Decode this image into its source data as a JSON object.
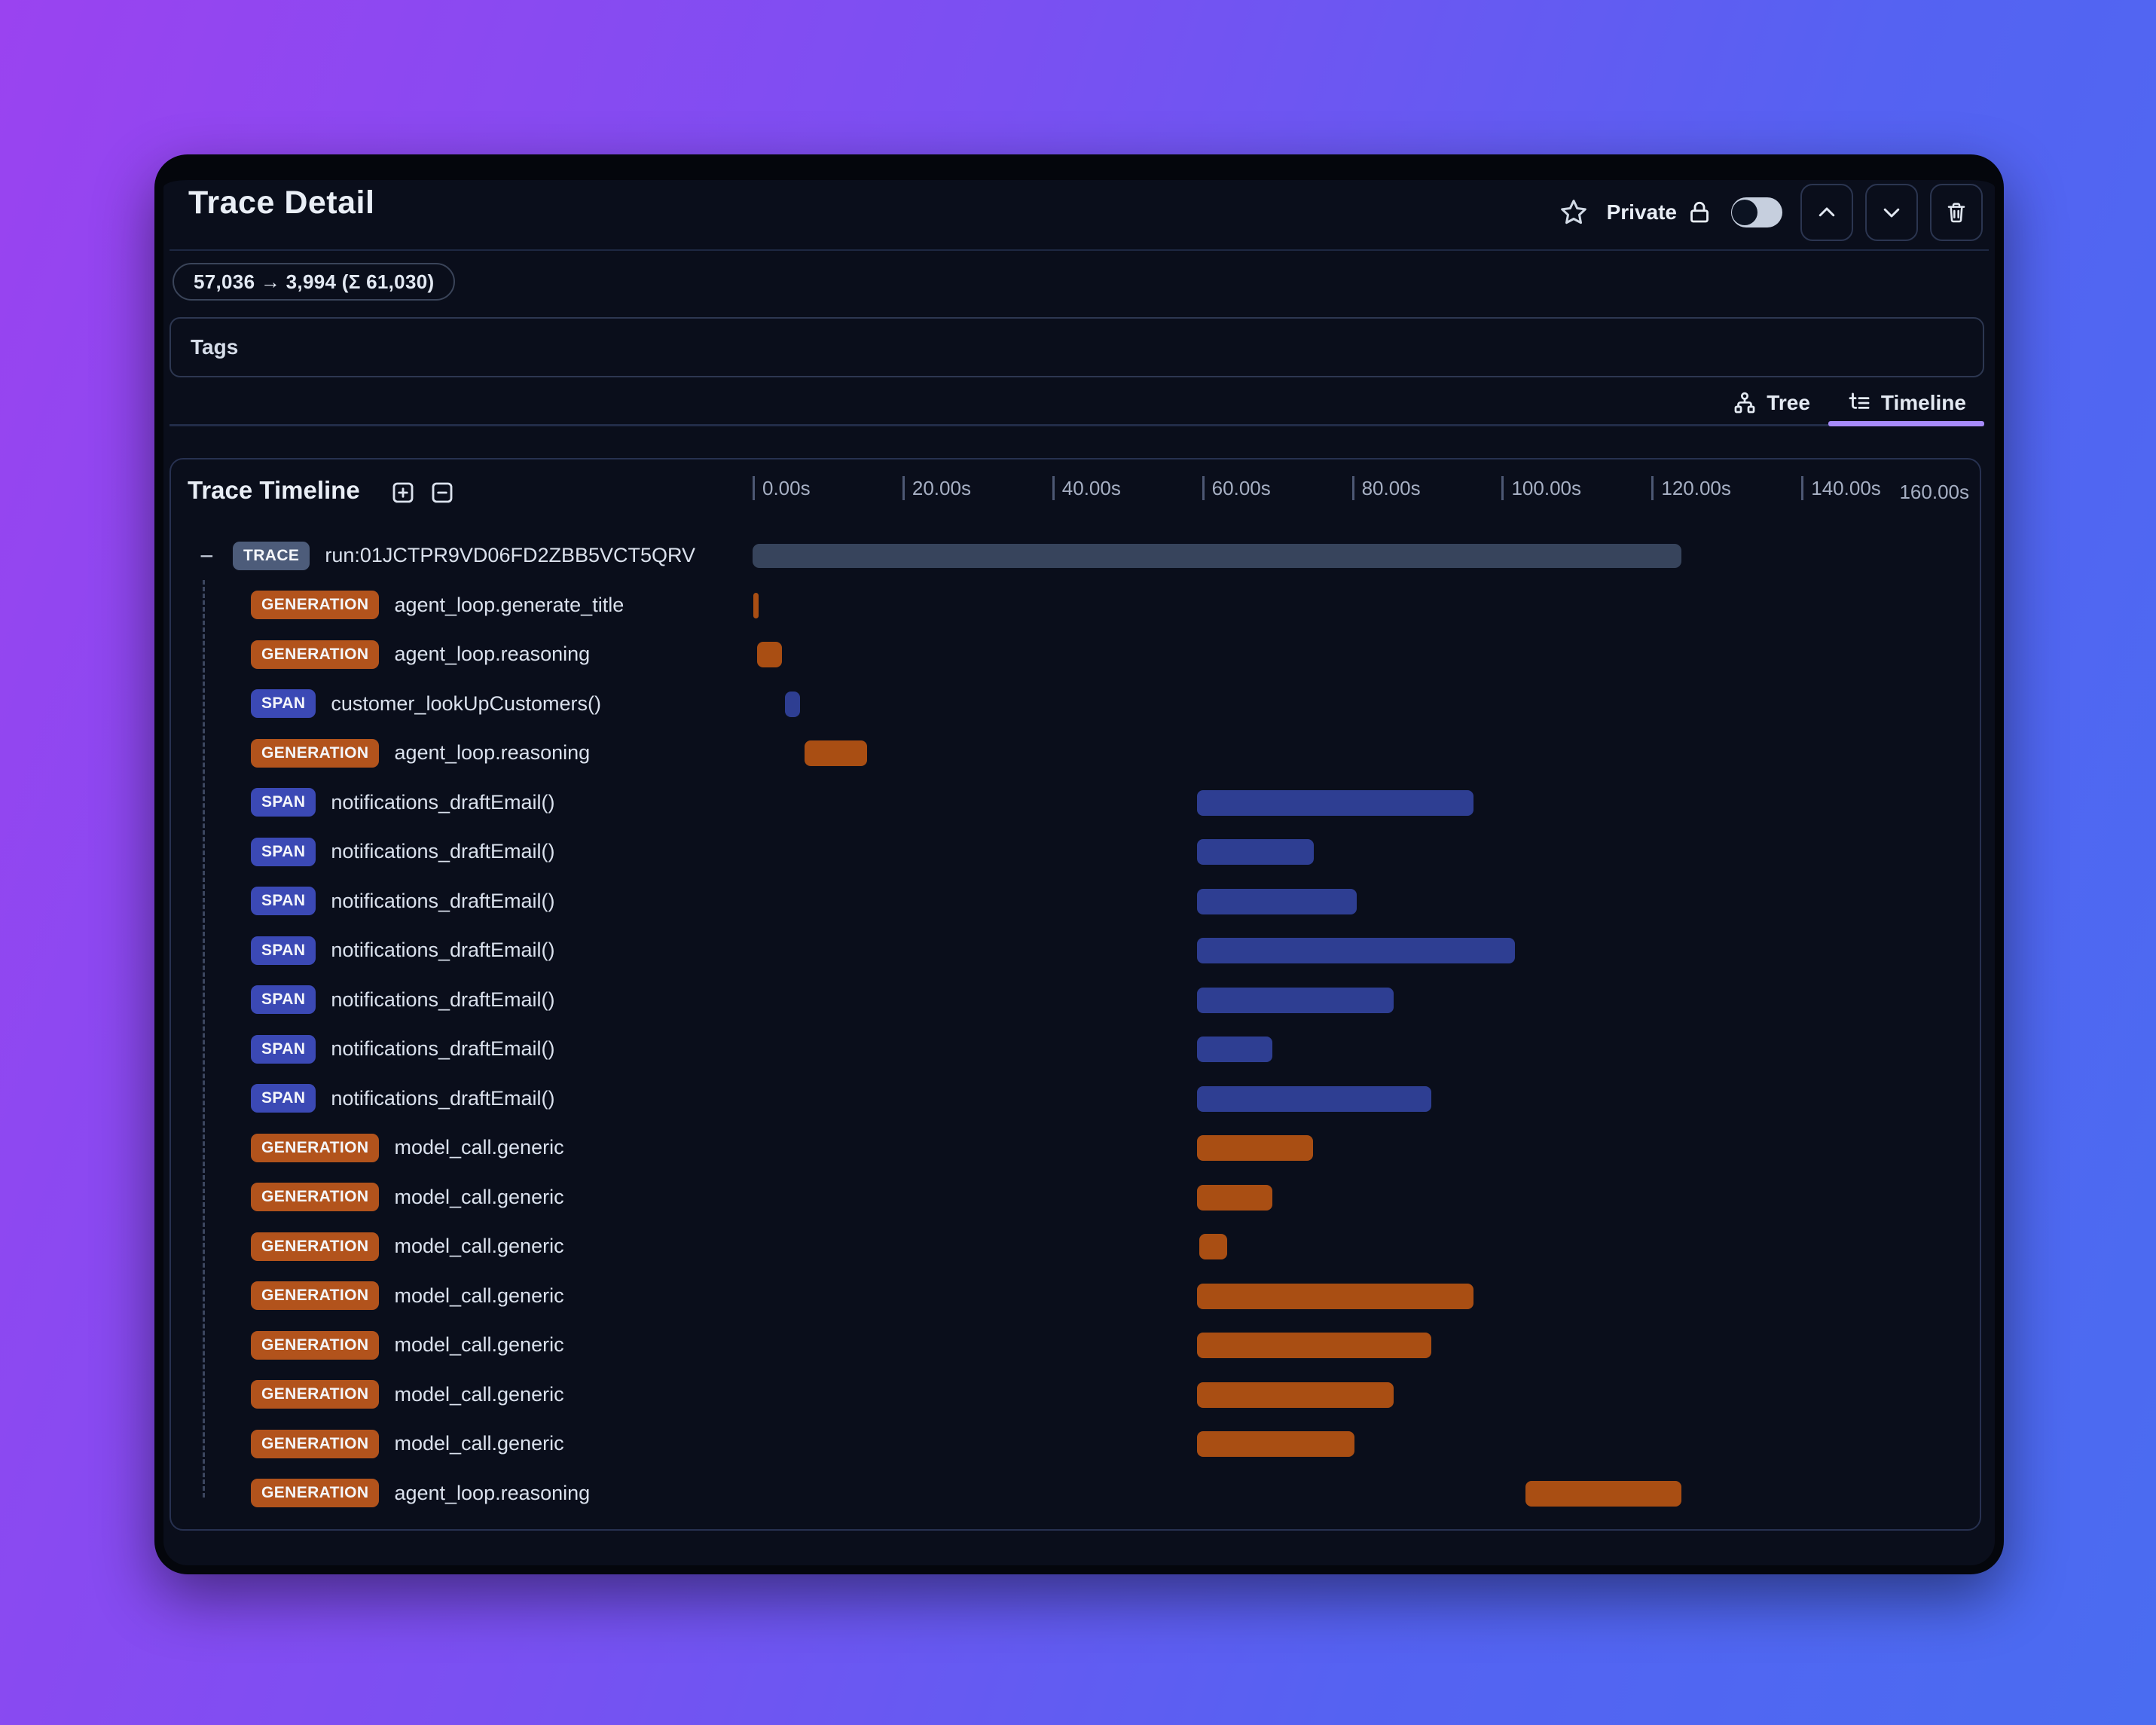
{
  "header": {
    "title": "Trace Detail",
    "privacy": {
      "label": "Private",
      "toggle_state": "off"
    }
  },
  "icons": {
    "bookmark": "star-outline",
    "privacy": "lock-outline",
    "scroll_up": "chevron-up",
    "scroll_down": "chevron-down",
    "delete": "trash-outline",
    "tree_tab": "hierarchy",
    "timeline_tab": "list-tree",
    "expand_all": "plus-square",
    "collapse_all": "minus-square",
    "collapse_row_glyph": "−"
  },
  "token_badge": "57,036 → 3,994 (Σ 61,030)",
  "tags": {
    "label": "Tags"
  },
  "tabs": [
    {
      "label": "Tree",
      "active": false
    },
    {
      "label": "Timeline",
      "active": true
    }
  ],
  "timeline": {
    "title": "Trace Timeline",
    "axis": {
      "tick_labels": [
        "0.00s",
        "20.00s",
        "40.00s",
        "60.00s",
        "80.00s",
        "100.00s",
        "120.00s",
        "140.00s"
      ],
      "end_label": "160.00s",
      "interval_seconds": 20,
      "max_seconds": 163
    },
    "colors": {
      "trace_badge": "#4d5c7a",
      "trace_bar": "#37445c",
      "generation_badge": "#b2531c",
      "generation_bar": "#a94e13",
      "span_badge": "#3b49b5",
      "span_bar": "#2e3e92",
      "tab_underline": "#a78bfa"
    },
    "rows": [
      {
        "type": "TRACE",
        "label": "run:01JCTPR9VD06FD2ZBB5VCT5QRV",
        "start_s": 0,
        "end_s": 124.0,
        "level": 0,
        "collapsible": true
      },
      {
        "type": "GENERATION",
        "label": "agent_loop.generate_title",
        "start_s": 0.1,
        "end_s": 0.8,
        "level": 1
      },
      {
        "type": "GENERATION",
        "label": "agent_loop.reasoning",
        "start_s": 0.6,
        "end_s": 3.9,
        "level": 1
      },
      {
        "type": "SPAN",
        "label": "customer_lookUpCustomers()",
        "start_s": 4.3,
        "end_s": 6.3,
        "level": 1
      },
      {
        "type": "GENERATION",
        "label": "agent_loop.reasoning",
        "start_s": 6.9,
        "end_s": 15.3,
        "level": 1
      },
      {
        "type": "SPAN",
        "label": "notifications_draftEmail()",
        "start_s": 59.3,
        "end_s": 96.2,
        "level": 1
      },
      {
        "type": "SPAN",
        "label": "notifications_draftEmail()",
        "start_s": 59.3,
        "end_s": 74.9,
        "level": 1
      },
      {
        "type": "SPAN",
        "label": "notifications_draftEmail()",
        "start_s": 59.3,
        "end_s": 80.6,
        "level": 1
      },
      {
        "type": "SPAN",
        "label": "notifications_draftEmail()",
        "start_s": 59.3,
        "end_s": 101.8,
        "level": 1
      },
      {
        "type": "SPAN",
        "label": "notifications_draftEmail()",
        "start_s": 59.3,
        "end_s": 85.6,
        "level": 1
      },
      {
        "type": "SPAN",
        "label": "notifications_draftEmail()",
        "start_s": 59.3,
        "end_s": 69.4,
        "level": 1
      },
      {
        "type": "SPAN",
        "label": "notifications_draftEmail()",
        "start_s": 59.3,
        "end_s": 90.6,
        "level": 1
      },
      {
        "type": "GENERATION",
        "label": "model_call.generic",
        "start_s": 59.3,
        "end_s": 74.8,
        "level": 1
      },
      {
        "type": "GENERATION",
        "label": "model_call.generic",
        "start_s": 59.3,
        "end_s": 69.4,
        "level": 1
      },
      {
        "type": "GENERATION",
        "label": "model_call.generic",
        "start_s": 59.6,
        "end_s": 63.4,
        "level": 1
      },
      {
        "type": "GENERATION",
        "label": "model_call.generic",
        "start_s": 59.3,
        "end_s": 96.2,
        "level": 1
      },
      {
        "type": "GENERATION",
        "label": "model_call.generic",
        "start_s": 59.3,
        "end_s": 90.6,
        "level": 1
      },
      {
        "type": "GENERATION",
        "label": "model_call.generic",
        "start_s": 59.3,
        "end_s": 85.6,
        "level": 1
      },
      {
        "type": "GENERATION",
        "label": "model_call.generic",
        "start_s": 59.3,
        "end_s": 80.3,
        "level": 1
      },
      {
        "type": "GENERATION",
        "label": "agent_loop.reasoning",
        "start_s": 103.2,
        "end_s": 124.0,
        "level": 1
      }
    ]
  }
}
